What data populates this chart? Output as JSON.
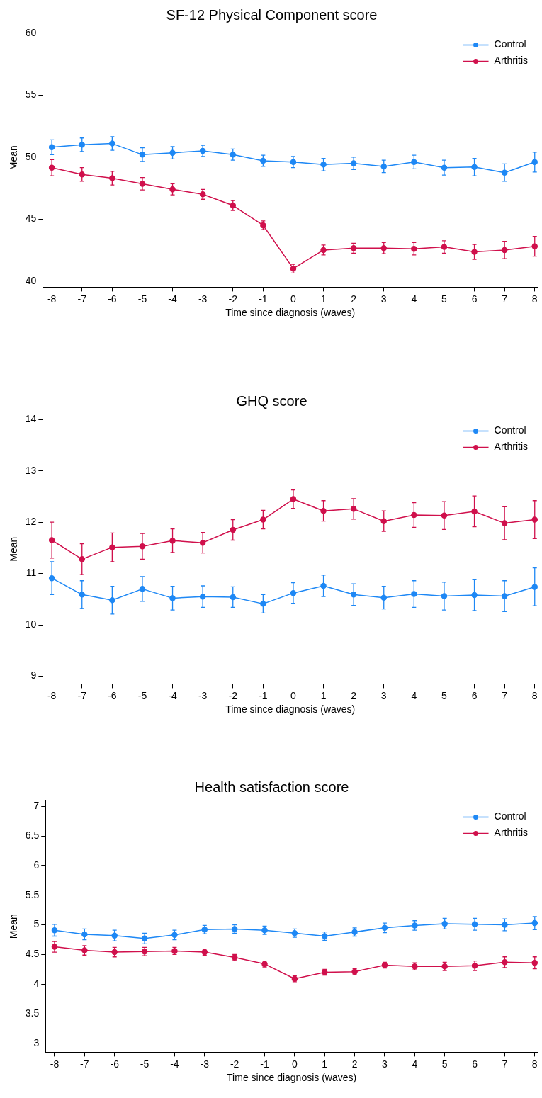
{
  "chart_data": [
    {
      "type": "line",
      "title": "SF-12 Physical Component score",
      "xlabel": "Time since diagnosis (waves)",
      "ylabel": "Mean",
      "x": [
        -8,
        -7,
        -6,
        -5,
        -4,
        -3,
        -2,
        -1,
        0,
        1,
        2,
        3,
        4,
        5,
        6,
        7,
        8
      ],
      "xlim": [
        -8.3,
        8.1
      ],
      "xticks": [
        -8,
        -7,
        -6,
        -5,
        -4,
        -3,
        -2,
        -1,
        0,
        1,
        2,
        3,
        4,
        5,
        6,
        7,
        8
      ],
      "ylim": [
        39.5,
        60.4
      ],
      "yticks": [
        40,
        45,
        50,
        55,
        60
      ],
      "legend": "top right",
      "marker": "circle",
      "line_style": "solid",
      "series": [
        {
          "name": "Control",
          "color": "#1e88f5",
          "values": [
            50.8,
            51.0,
            51.1,
            50.2,
            50.35,
            50.5,
            50.2,
            49.7,
            49.6,
            49.4,
            49.5,
            49.25,
            49.6,
            49.15,
            49.2,
            48.75,
            49.6
          ],
          "errors": [
            0.6,
            0.55,
            0.55,
            0.55,
            0.5,
            0.45,
            0.45,
            0.45,
            0.45,
            0.5,
            0.5,
            0.5,
            0.55,
            0.6,
            0.7,
            0.7,
            0.8
          ]
        },
        {
          "name": "Arthritis",
          "color": "#d0104c",
          "values": [
            49.15,
            48.6,
            48.3,
            47.85,
            47.4,
            47.0,
            46.1,
            44.5,
            41.0,
            42.5,
            42.65,
            42.65,
            42.6,
            42.75,
            42.35,
            42.5,
            42.8
          ],
          "errors": [
            0.65,
            0.55,
            0.55,
            0.5,
            0.45,
            0.4,
            0.4,
            0.35,
            0.35,
            0.4,
            0.4,
            0.45,
            0.5,
            0.5,
            0.6,
            0.7,
            0.8
          ]
        }
      ]
    },
    {
      "type": "line",
      "title": "GHQ score",
      "xlabel": "Time since diagnosis (waves)",
      "ylabel": "Mean",
      "x": [
        -8,
        -7,
        -6,
        -5,
        -4,
        -3,
        -2,
        -1,
        0,
        1,
        2,
        3,
        4,
        5,
        6,
        7,
        8
      ],
      "xlim": [
        -8.3,
        8.1
      ],
      "xticks": [
        -8,
        -7,
        -6,
        -5,
        -4,
        -3,
        -2,
        -1,
        0,
        1,
        2,
        3,
        4,
        5,
        6,
        7,
        8
      ],
      "ylim": [
        8.85,
        14.1
      ],
      "yticks": [
        9,
        10,
        11,
        12,
        13,
        14
      ],
      "legend": "top right",
      "marker": "circle",
      "line_style": "solid",
      "series": [
        {
          "name": "Control",
          "color": "#1e88f5",
          "values": [
            10.91,
            10.59,
            10.48,
            10.7,
            10.52,
            10.55,
            10.54,
            10.41,
            10.62,
            10.76,
            10.59,
            10.53,
            10.6,
            10.56,
            10.58,
            10.56,
            10.74
          ],
          "errors": [
            0.32,
            0.27,
            0.27,
            0.24,
            0.23,
            0.21,
            0.2,
            0.18,
            0.2,
            0.21,
            0.21,
            0.22,
            0.26,
            0.27,
            0.3,
            0.3,
            0.37
          ]
        },
        {
          "name": "Arthritis",
          "color": "#d0104c",
          "values": [
            11.65,
            11.28,
            11.51,
            11.53,
            11.64,
            11.6,
            11.85,
            12.05,
            12.45,
            12.22,
            12.26,
            12.02,
            12.14,
            12.13,
            12.21,
            11.98,
            12.05
          ],
          "errors": [
            0.35,
            0.3,
            0.28,
            0.25,
            0.23,
            0.2,
            0.2,
            0.18,
            0.18,
            0.2,
            0.2,
            0.2,
            0.24,
            0.27,
            0.3,
            0.32,
            0.37
          ]
        }
      ]
    },
    {
      "type": "line",
      "title": "Health satisfaction score",
      "xlabel": "Time since diagnosis (waves)",
      "ylabel": "Mean",
      "x": [
        -8,
        -7,
        -6,
        -5,
        -4,
        -3,
        -2,
        -1,
        0,
        1,
        2,
        3,
        4,
        5,
        6,
        7,
        8
      ],
      "xlim": [
        -8.3,
        8.1
      ],
      "xticks": [
        -8,
        -7,
        -6,
        -5,
        -4,
        -3,
        -2,
        -1,
        0,
        1,
        2,
        3,
        4,
        5,
        6,
        7,
        8
      ],
      "ylim": [
        2.85,
        7.1
      ],
      "yticks": [
        3,
        3.5,
        4,
        4.5,
        5,
        5.5,
        6,
        6.5,
        7
      ],
      "legend": "top right",
      "marker": "circle",
      "line_style": "solid",
      "series": [
        {
          "name": "Control",
          "color": "#1e88f5",
          "values": [
            4.91,
            4.84,
            4.82,
            4.77,
            4.83,
            4.92,
            4.93,
            4.91,
            4.86,
            4.81,
            4.88,
            4.95,
            4.99,
            5.02,
            5.01,
            5.0,
            5.03
          ],
          "errors": [
            0.1,
            0.09,
            0.09,
            0.09,
            0.08,
            0.07,
            0.07,
            0.07,
            0.07,
            0.07,
            0.07,
            0.08,
            0.08,
            0.09,
            0.1,
            0.1,
            0.11
          ]
        },
        {
          "name": "Arthritis",
          "color": "#d0104c",
          "values": [
            4.63,
            4.57,
            4.54,
            4.55,
            4.56,
            4.54,
            4.45,
            4.34,
            4.09,
            4.2,
            4.21,
            4.32,
            4.3,
            4.3,
            4.31,
            4.37,
            4.36
          ],
          "errors": [
            0.09,
            0.08,
            0.08,
            0.07,
            0.06,
            0.05,
            0.05,
            0.05,
            0.05,
            0.05,
            0.05,
            0.05,
            0.06,
            0.07,
            0.08,
            0.09,
            0.1
          ]
        }
      ]
    }
  ]
}
